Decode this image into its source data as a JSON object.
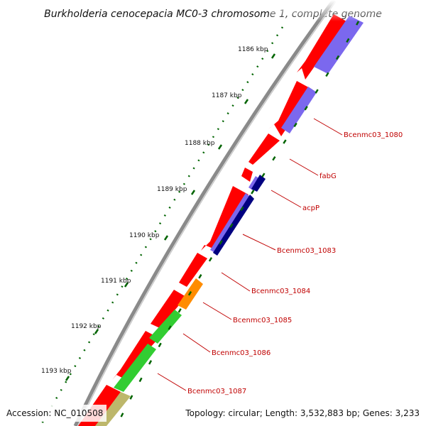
{
  "title": "Burkholderia cenocepacia MC0-3 chromosome 1, complete genome",
  "footer": {
    "accession": "Accession: NC_010508",
    "summary": "Topology: circular; Length: 3,532,883 bp; Genes: 3,233"
  },
  "scale_ticks": [
    "1186 kbp",
    "1187 kbp",
    "1188 kbp",
    "1189 kbp",
    "1190 kbp",
    "1191 kbp",
    "1192 kbp",
    "1193 kbp"
  ],
  "gene_labels": [
    "Bcenmc03_1080",
    "fabG",
    "acpP",
    "Bcenmc03_1083",
    "Bcenmc03_1084",
    "Bcenmc03_1085",
    "Bcenmc03_1086",
    "Bcenmc03_1087"
  ],
  "colors": {
    "backbone": "#8a8a8a",
    "gene_red": "#ff0000",
    "cds_blue": "#7b68ee",
    "cds_navy": "#000080",
    "cds_orange": "#ff8c00",
    "cds_green": "#32cd32",
    "cds_khaki": "#bdb76b",
    "ticks": "#006400",
    "label": "#c00000"
  }
}
